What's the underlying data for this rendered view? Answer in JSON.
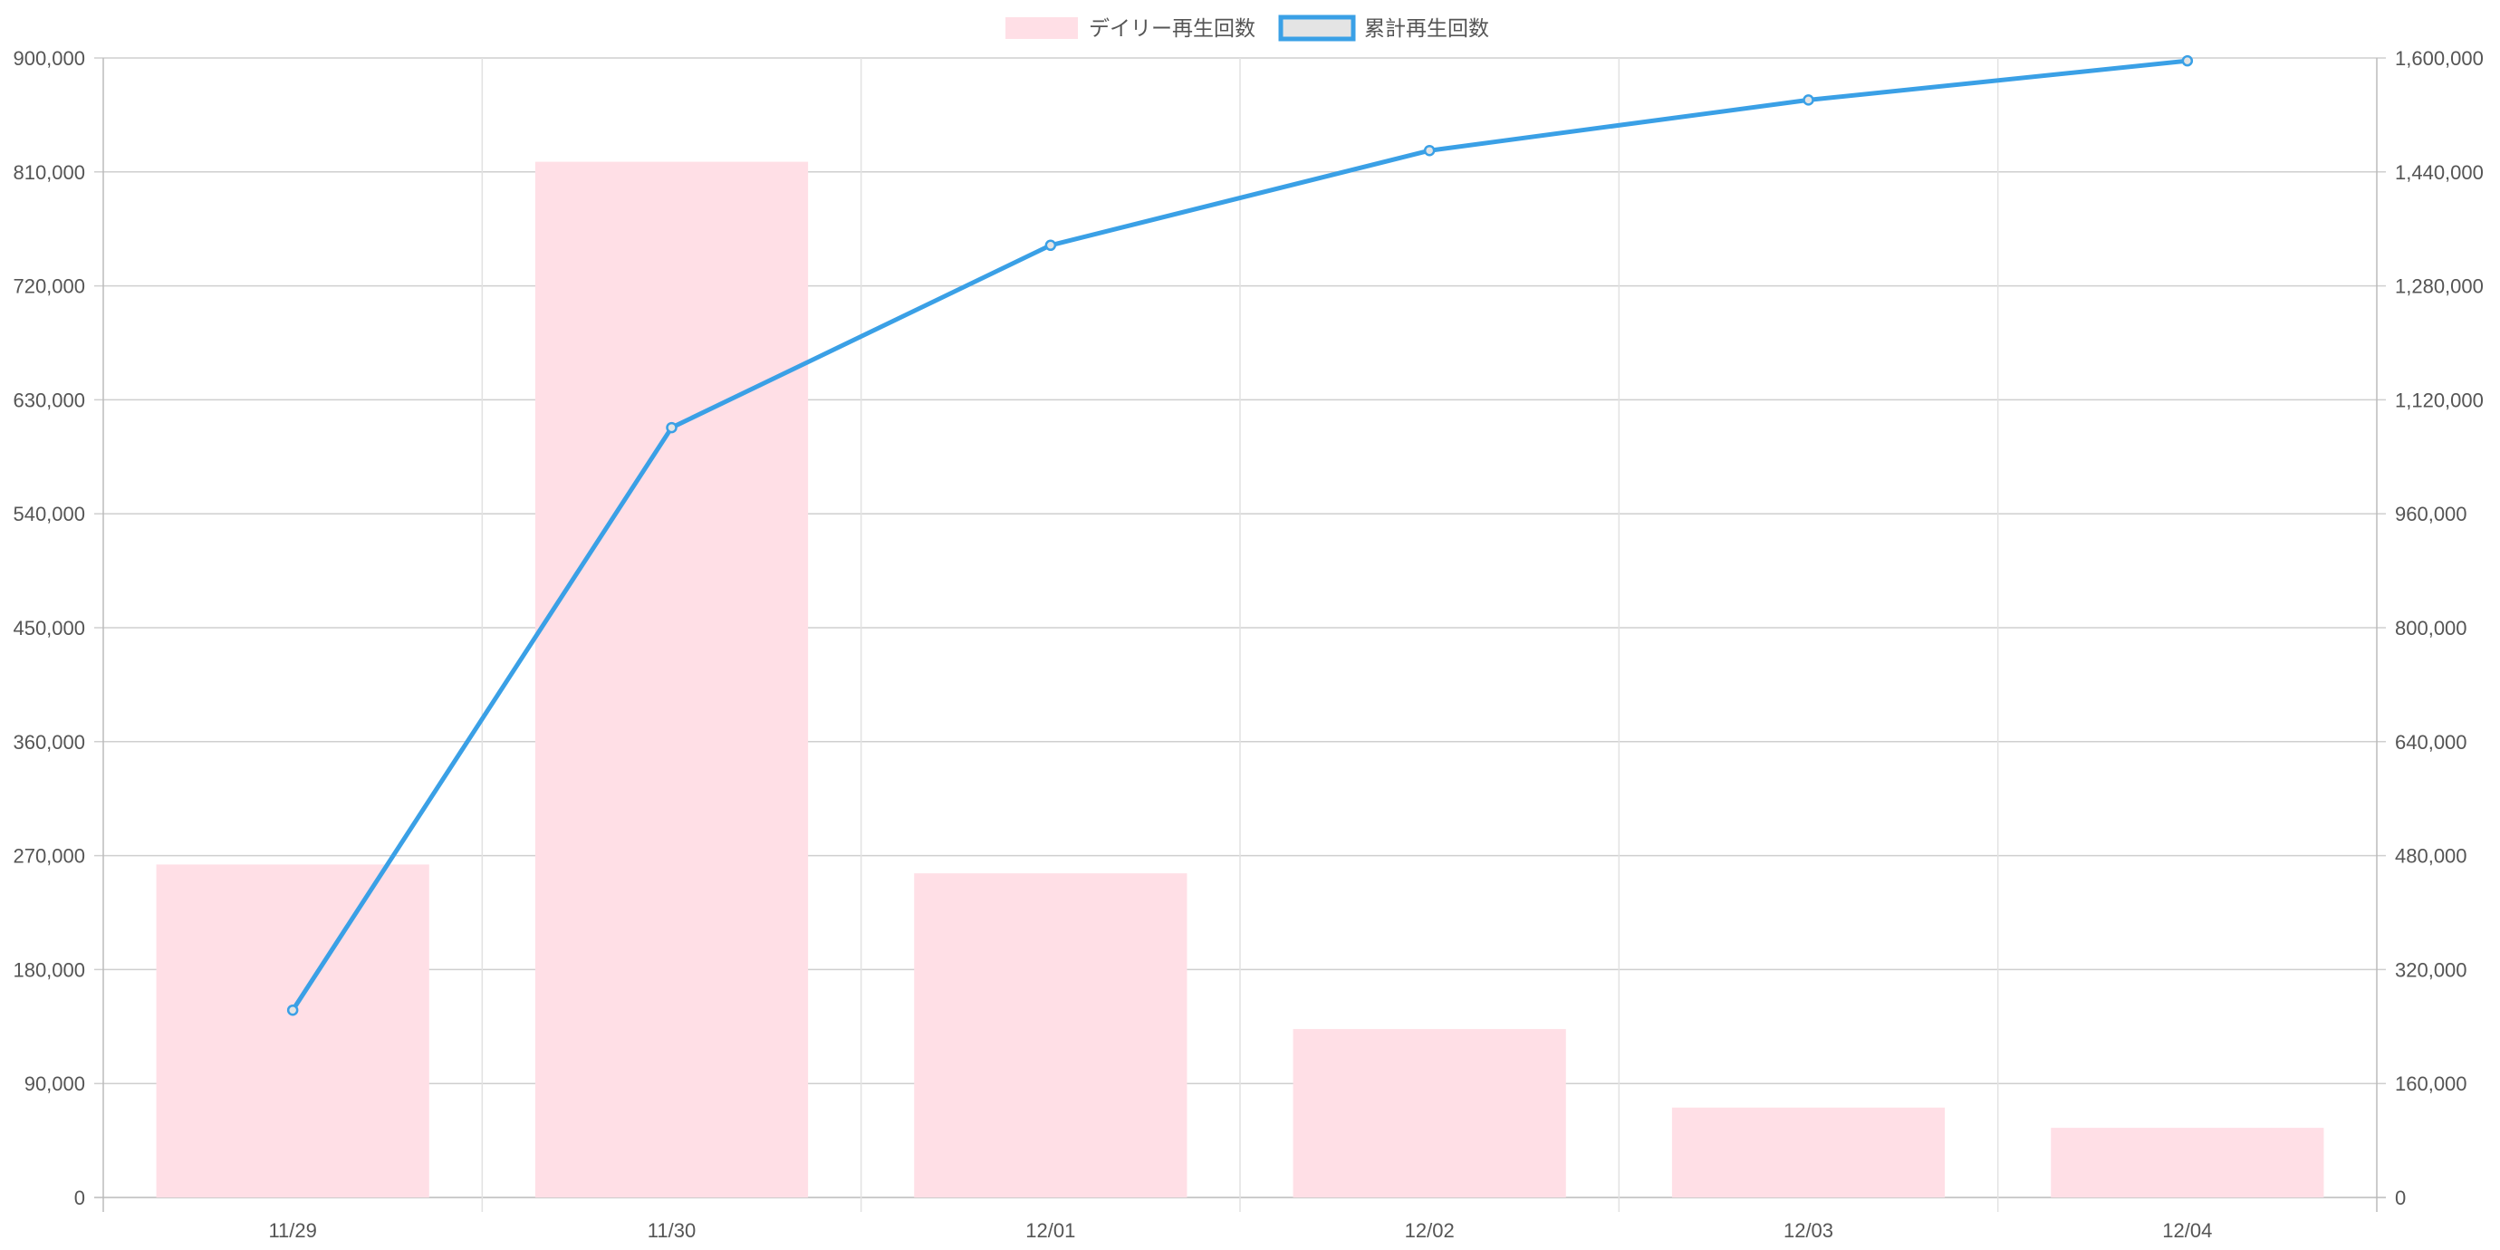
{
  "chart_data": {
    "type": "bar",
    "categories": [
      "11/29",
      "11/30",
      "12/01",
      "12/02",
      "12/03",
      "12/04"
    ],
    "series": [
      {
        "name": "デイリー再生回数",
        "type": "bar",
        "axis": "left",
        "color": "#ffdfe6",
        "values": [
          263000,
          818000,
          256000,
          133000,
          71000,
          55000
        ]
      },
      {
        "name": "累計再生回数",
        "type": "line",
        "axis": "right",
        "color": "#3aa0e6",
        "values": [
          263000,
          1081000,
          1337000,
          1470000,
          1541000,
          1596000
        ]
      }
    ],
    "y_left": {
      "ylim": [
        0,
        900000
      ],
      "ticks": [
        "0",
        "90,000",
        "180,000",
        "270,000",
        "360,000",
        "450,000",
        "540,000",
        "630,000",
        "720,000",
        "810,000",
        "900,000"
      ]
    },
    "y_right": {
      "ylim": [
        0,
        1600000
      ],
      "ticks": [
        "0",
        "160,000",
        "320,000",
        "480,000",
        "640,000",
        "800,000",
        "960,000",
        "1,120,000",
        "1,280,000",
        "1,440,000",
        "1,600,000"
      ]
    },
    "title": "",
    "xlabel": "",
    "ylabel": "",
    "grid": true,
    "legend_position": "top-center"
  }
}
